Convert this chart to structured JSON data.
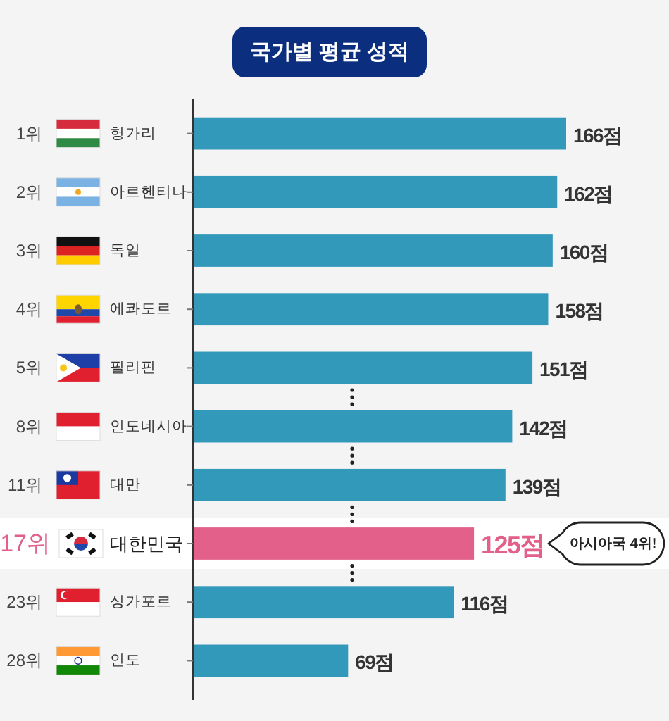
{
  "chart_data": {
    "type": "bar",
    "orientation": "horizontal",
    "title": "국가별 평균 성적",
    "categories": [
      "헝가리",
      "아르헨티나",
      "독일",
      "에콰도르",
      "필리핀",
      "인도네시아",
      "대만",
      "대한민국",
      "싱가포르",
      "인도"
    ],
    "values": [
      166,
      162,
      160,
      158,
      151,
      142,
      139,
      125,
      116,
      69
    ],
    "value_labels": [
      "166점",
      "162점",
      "160점",
      "158점",
      "151점",
      "142점",
      "139점",
      "125점",
      "116점",
      "69점"
    ],
    "colors": [
      "#3399bb",
      "#3399bb",
      "#3399bb",
      "#3399bb",
      "#3399bb",
      "#3399bb",
      "#3399bb",
      "#e2608a",
      "#3399bb",
      "#3399bb"
    ],
    "annotations": [
      "1위",
      "2위",
      "3위",
      "4위",
      "5위",
      "8위",
      "11위",
      "17위",
      "23위",
      "28위",
      "아시아국 4위!"
    ]
  }
}
